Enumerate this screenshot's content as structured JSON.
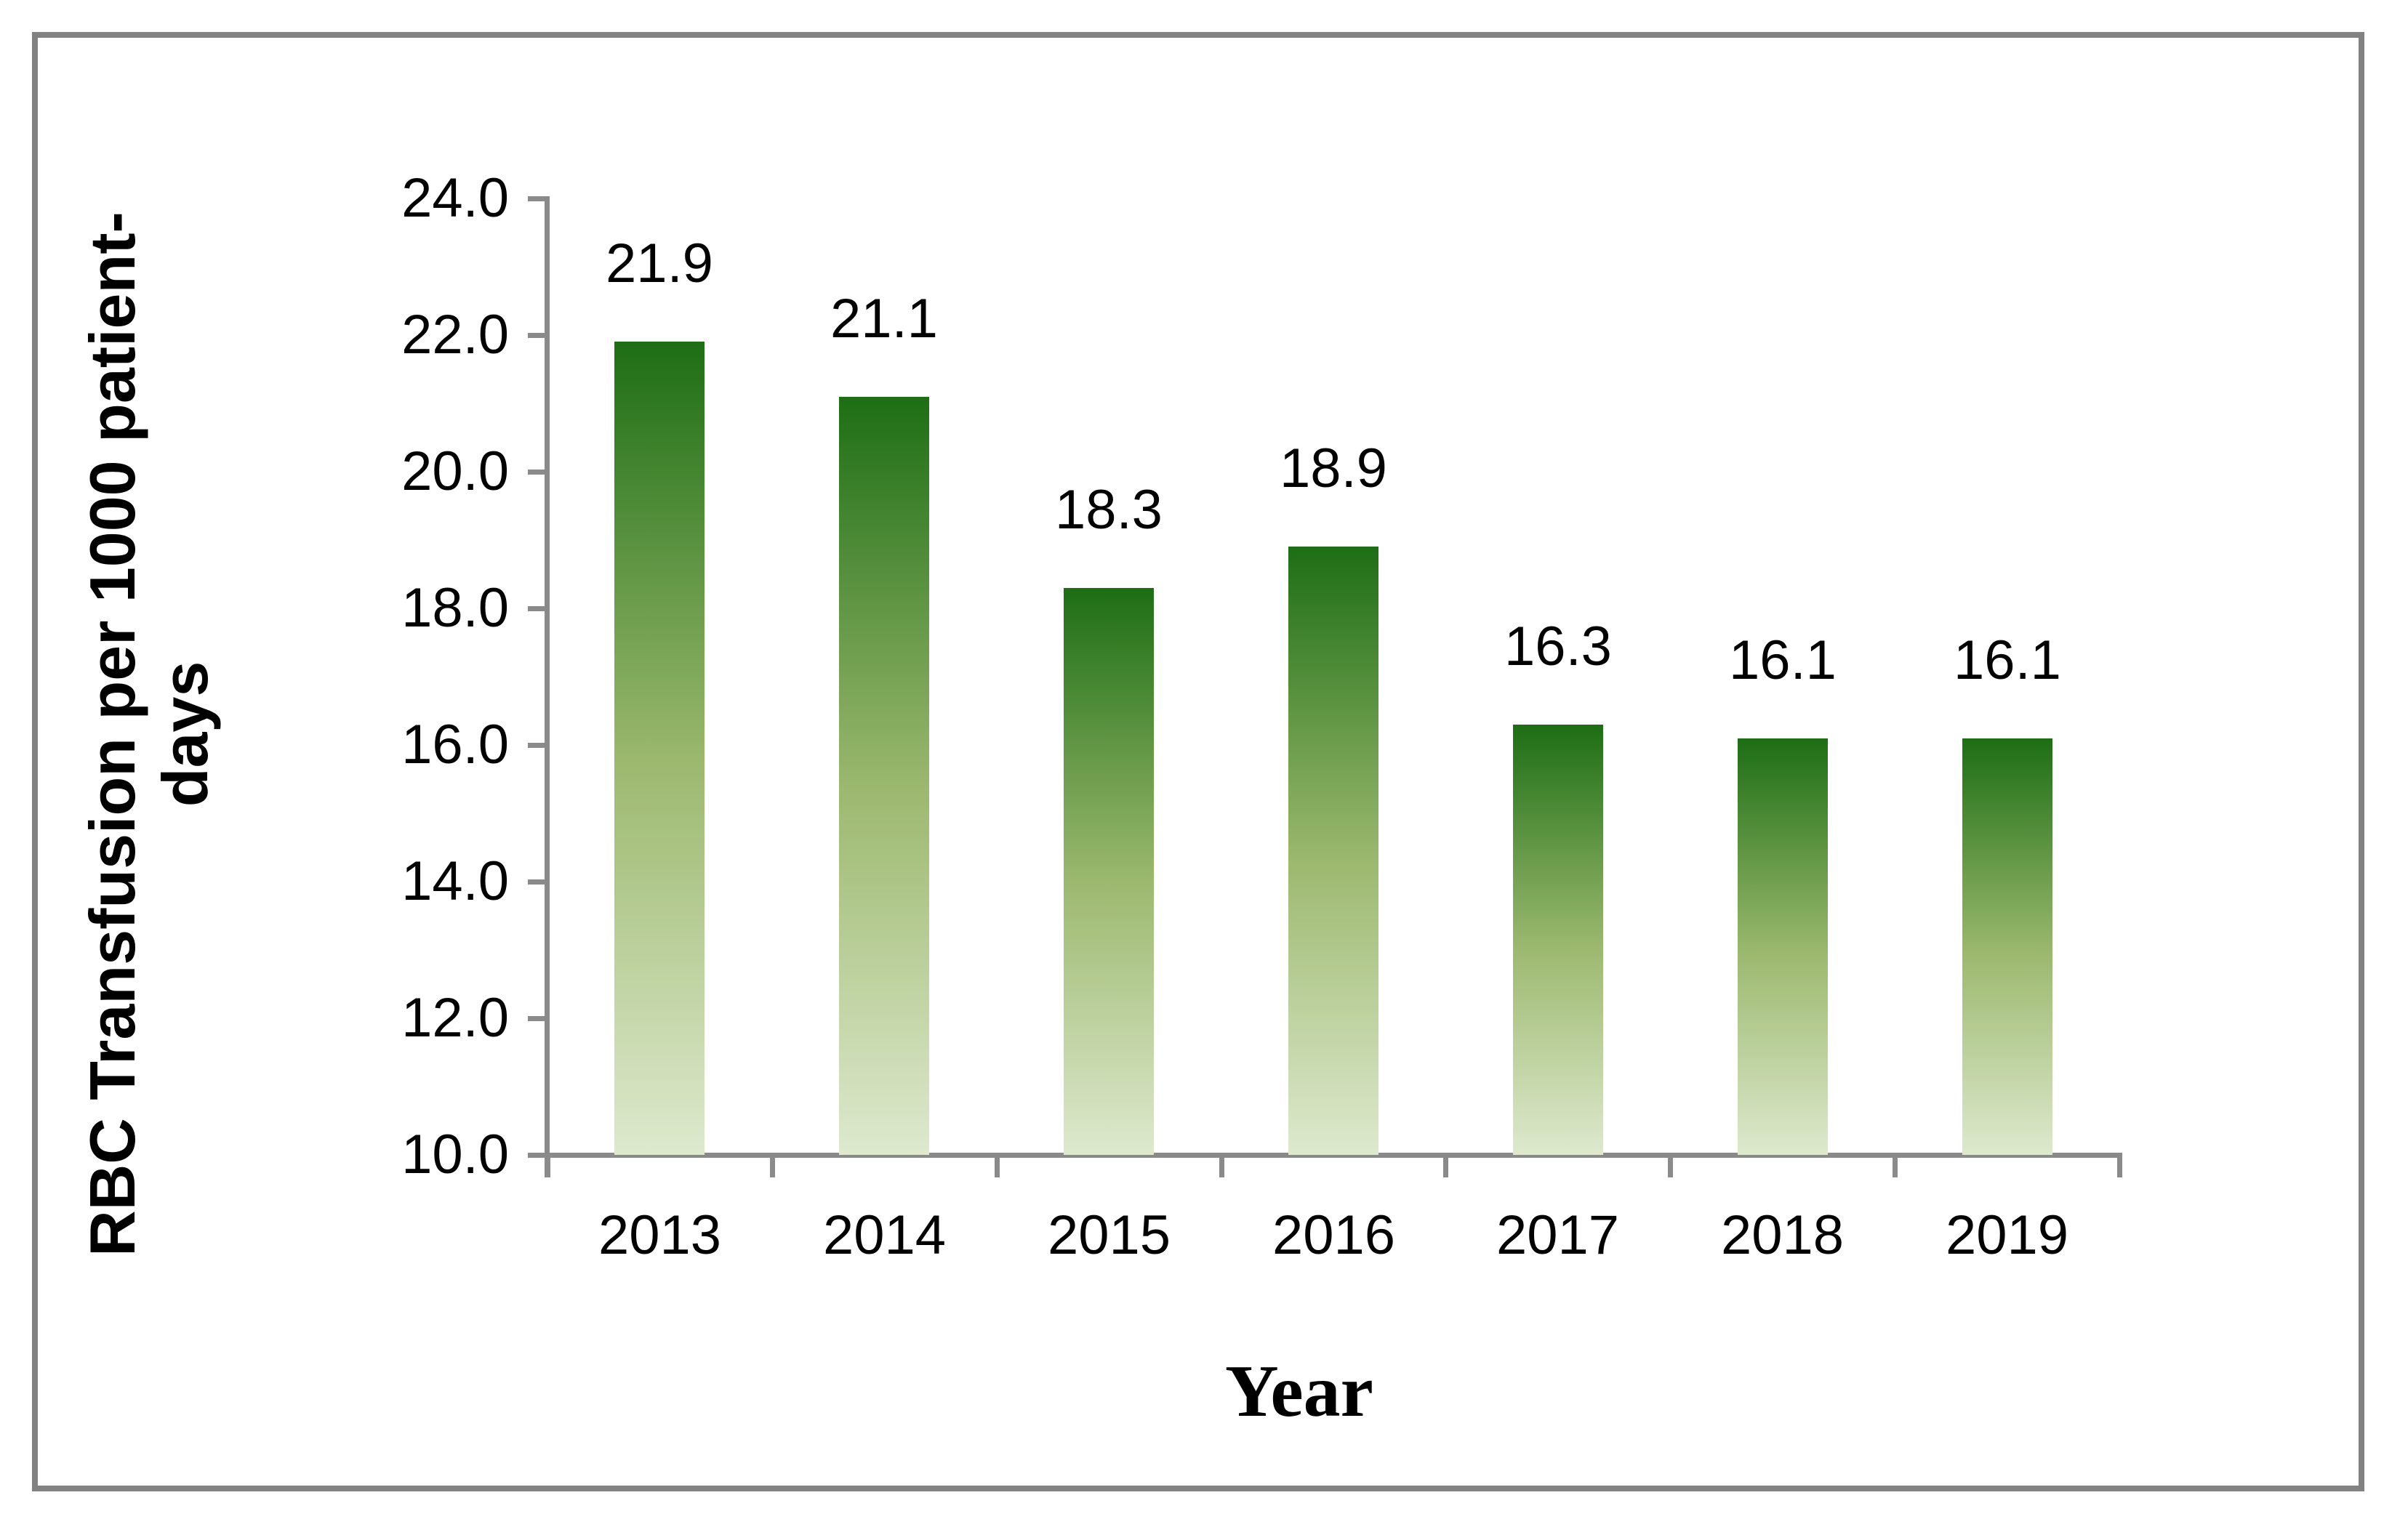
{
  "chart_data": {
    "type": "bar",
    "title": "",
    "xlabel": "Year",
    "ylabel": "RBC Transfusion per 1000 patient-days",
    "ylabel_lines": [
      "RBC Transfusion per 1000 patient-",
      "days"
    ],
    "categories": [
      "2013",
      "2014",
      "2015",
      "2016",
      "2017",
      "2018",
      "2019"
    ],
    "values": [
      21.9,
      21.1,
      18.3,
      18.9,
      16.3,
      16.1,
      16.1
    ],
    "data_labels": [
      "21.9",
      "21.1",
      "18.3",
      "18.9",
      "16.3",
      "16.1",
      "16.1"
    ],
    "y_ticks": [
      24.0,
      22.0,
      20.0,
      18.0,
      16.0,
      14.0,
      12.0,
      10.0
    ],
    "y_tick_labels": [
      "24.0",
      "22.0",
      "20.0",
      "18.0",
      "16.0",
      "14.0",
      "12.0",
      "10.0"
    ],
    "ylim": [
      10.0,
      24.0
    ],
    "y_tick_step": 2.0,
    "grid": false,
    "legend_position": "none",
    "bar_gradient_top": "#1d6e14",
    "bar_gradient_mid": "#9cb96f",
    "bar_gradient_bottom": "#dee9ce",
    "axis_color": "#8a8a8a",
    "frame_color": "#828282",
    "label_color": "#000000"
  }
}
